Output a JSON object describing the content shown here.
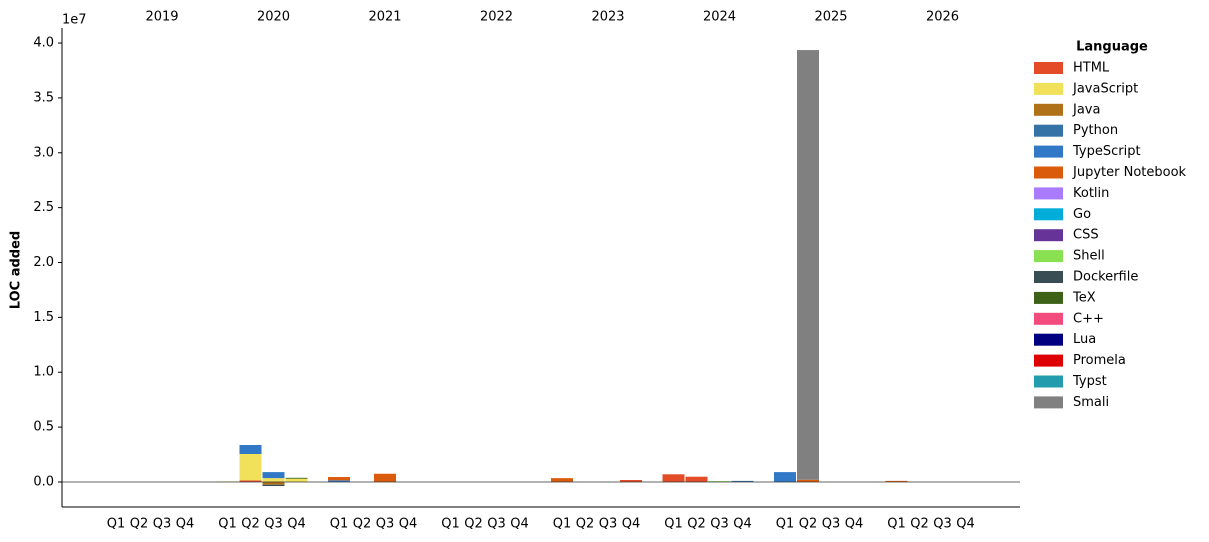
{
  "chart_data": {
    "type": "stacked-bar",
    "y_label": "LOC added",
    "y_offset_label": "1e7",
    "legend_title": "Language",
    "legend_position": "outside right",
    "years": [
      "2019",
      "2020",
      "2021",
      "2022",
      "2023",
      "2024",
      "2025",
      "2026"
    ],
    "categories": [
      "Q1",
      "Q2",
      "Q3",
      "Q4",
      "Q1",
      "Q2",
      "Q3",
      "Q4",
      "Q1",
      "Q2",
      "Q3",
      "Q4",
      "Q1",
      "Q2",
      "Q3",
      "Q4",
      "Q1",
      "Q2",
      "Q3",
      "Q4",
      "Q1",
      "Q2",
      "Q3",
      "Q4",
      "Q1",
      "Q2",
      "Q3",
      "Q4",
      "Q1",
      "Q2",
      "Q3",
      "Q4"
    ],
    "ylim": [
      -2280000,
      41370000
    ],
    "yticks": [
      {
        "value": 0,
        "label": "0.0"
      },
      {
        "value": 5000000,
        "label": "0.5"
      },
      {
        "value": 10000000,
        "label": "1.0"
      },
      {
        "value": 15000000,
        "label": "1.5"
      },
      {
        "value": 20000000,
        "label": "2.0"
      },
      {
        "value": 25000000,
        "label": "2.5"
      },
      {
        "value": 30000000,
        "label": "3.0"
      },
      {
        "value": 35000000,
        "label": "3.5"
      },
      {
        "value": 40000000,
        "label": "4.0"
      }
    ],
    "series": [
      {
        "name": "HTML",
        "color": "#e34c26",
        "values": [
          0,
          0,
          0,
          0,
          0,
          150000,
          0,
          0,
          0,
          0,
          0,
          0,
          0,
          0,
          0,
          0,
          0,
          0,
          0,
          180000,
          700000,
          480000,
          0,
          0,
          0,
          0,
          0,
          0,
          0,
          0,
          0,
          0
        ]
      },
      {
        "name": "JavaScript",
        "color": "#f1e05a",
        "values": [
          0,
          0,
          0,
          0,
          50000,
          2400000,
          350000,
          300000,
          0,
          0,
          0,
          0,
          0,
          0,
          0,
          0,
          0,
          0,
          0,
          0,
          0,
          0,
          0,
          0,
          0,
          0,
          0,
          0,
          0,
          0,
          0,
          0
        ]
      },
      {
        "name": "Java",
        "color": "#b07219",
        "values": [
          0,
          0,
          0,
          0,
          0,
          0,
          -250000,
          0,
          0,
          0,
          0,
          0,
          0,
          0,
          0,
          0,
          0,
          0,
          0,
          0,
          0,
          0,
          0,
          0,
          0,
          0,
          0,
          0,
          0,
          0,
          0,
          0
        ]
      },
      {
        "name": "Python",
        "color": "#3572a5",
        "values": [
          0,
          0,
          0,
          0,
          0,
          0,
          0,
          0,
          0,
          0,
          0,
          0,
          0,
          0,
          0,
          0,
          0,
          0,
          0,
          0,
          0,
          0,
          0,
          100000,
          0,
          0,
          0,
          0,
          0,
          0,
          0,
          0
        ]
      },
      {
        "name": "TypeScript",
        "color": "#3178c6",
        "values": [
          0,
          0,
          0,
          0,
          0,
          820000,
          550000,
          0,
          150000,
          0,
          0,
          0,
          0,
          0,
          0,
          0,
          0,
          0,
          0,
          0,
          0,
          0,
          0,
          0,
          900000,
          0,
          0,
          0,
          0,
          0,
          0,
          0
        ]
      },
      {
        "name": "Jupyter Notebook",
        "color": "#da5b0b",
        "values": [
          0,
          0,
          0,
          0,
          0,
          0,
          0,
          0,
          300000,
          0,
          750000,
          0,
          0,
          0,
          0,
          0,
          350000,
          0,
          0,
          0,
          0,
          0,
          0,
          0,
          0,
          200000,
          0,
          0,
          100000,
          0,
          0,
          0
        ]
      },
      {
        "name": "Kotlin",
        "color": "#a97bff",
        "values": [
          0,
          0,
          0,
          0,
          0,
          0,
          0,
          0,
          0,
          0,
          0,
          0,
          0,
          0,
          0,
          0,
          0,
          0,
          0,
          0,
          0,
          0,
          0,
          0,
          0,
          0,
          0,
          0,
          0,
          0,
          0,
          0
        ]
      },
      {
        "name": "Go",
        "color": "#00add8",
        "values": [
          0,
          0,
          0,
          0,
          0,
          0,
          0,
          0,
          0,
          0,
          0,
          0,
          0,
          0,
          0,
          0,
          0,
          0,
          0,
          0,
          0,
          0,
          0,
          0,
          0,
          0,
          0,
          0,
          0,
          0,
          0,
          0
        ]
      },
      {
        "name": "CSS",
        "color": "#663399",
        "values": [
          0,
          0,
          0,
          0,
          0,
          0,
          0,
          0,
          0,
          0,
          0,
          0,
          0,
          0,
          0,
          0,
          0,
          0,
          0,
          0,
          0,
          0,
          0,
          0,
          0,
          0,
          0,
          0,
          0,
          0,
          0,
          0
        ]
      },
      {
        "name": "Shell",
        "color": "#89e051",
        "values": [
          0,
          0,
          0,
          0,
          0,
          0,
          0,
          0,
          0,
          0,
          0,
          0,
          0,
          0,
          0,
          0,
          0,
          0,
          0,
          0,
          0,
          0,
          80000,
          0,
          0,
          0,
          0,
          0,
          0,
          0,
          0,
          0
        ]
      },
      {
        "name": "Dockerfile",
        "color": "#384d54",
        "values": [
          0,
          0,
          0,
          0,
          0,
          0,
          -120000,
          0,
          0,
          0,
          0,
          0,
          0,
          0,
          0,
          0,
          0,
          0,
          0,
          0,
          0,
          0,
          0,
          0,
          0,
          0,
          0,
          0,
          0,
          0,
          0,
          0
        ]
      },
      {
        "name": "TeX",
        "color": "#3d6117",
        "values": [
          0,
          0,
          0,
          0,
          0,
          0,
          0,
          80000,
          0,
          0,
          0,
          0,
          0,
          0,
          0,
          0,
          0,
          0,
          0,
          0,
          0,
          0,
          0,
          0,
          0,
          0,
          0,
          0,
          0,
          0,
          0,
          0
        ]
      },
      {
        "name": "C++",
        "color": "#f34b7d",
        "values": [
          0,
          0,
          0,
          0,
          0,
          0,
          0,
          0,
          0,
          0,
          0,
          0,
          0,
          0,
          0,
          0,
          0,
          0,
          0,
          0,
          0,
          0,
          0,
          0,
          0,
          0,
          0,
          0,
          0,
          0,
          0,
          0
        ]
      },
      {
        "name": "Lua",
        "color": "#000080",
        "values": [
          0,
          0,
          0,
          0,
          0,
          0,
          0,
          0,
          0,
          0,
          0,
          0,
          0,
          0,
          0,
          0,
          0,
          0,
          0,
          0,
          0,
          0,
          0,
          0,
          0,
          0,
          0,
          0,
          0,
          0,
          0,
          0
        ]
      },
      {
        "name": "Promela",
        "color": "#de0000",
        "values": [
          0,
          0,
          0,
          0,
          0,
          0,
          0,
          0,
          0,
          0,
          0,
          0,
          0,
          0,
          0,
          0,
          0,
          0,
          0,
          0,
          0,
          0,
          0,
          0,
          0,
          0,
          0,
          0,
          0,
          0,
          0,
          0
        ]
      },
      {
        "name": "Typst",
        "color": "#239dad",
        "values": [
          0,
          0,
          0,
          0,
          0,
          0,
          0,
          0,
          0,
          0,
          0,
          0,
          0,
          0,
          0,
          0,
          0,
          0,
          0,
          0,
          0,
          0,
          0,
          0,
          0,
          0,
          0,
          0,
          0,
          0,
          0,
          0
        ]
      },
      {
        "name": "Smali",
        "color": "#808080",
        "values": [
          0,
          0,
          0,
          0,
          0,
          0,
          0,
          0,
          0,
          0,
          0,
          0,
          0,
          0,
          0,
          0,
          0,
          0,
          0,
          0,
          0,
          0,
          0,
          0,
          0,
          39160000,
          0,
          0,
          0,
          0,
          0,
          0
        ]
      }
    ]
  }
}
